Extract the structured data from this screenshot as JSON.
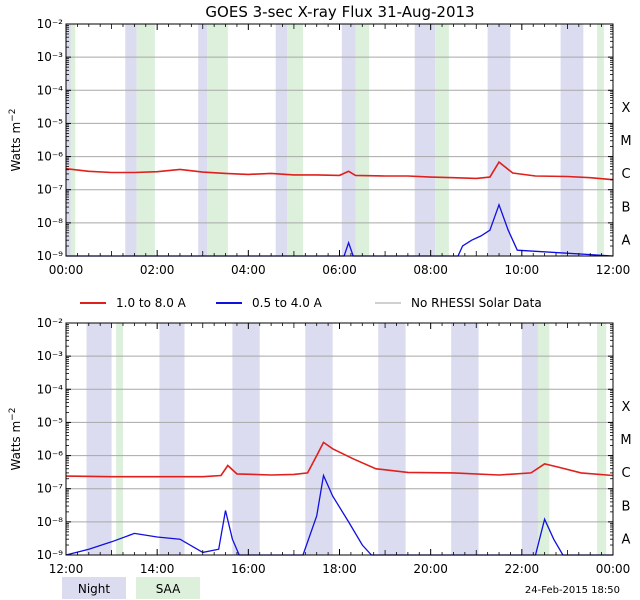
{
  "title": "GOES 3-sec X-ray Flux   31-Aug-2013",
  "footer_timestamp": "24-Feb-2015 18:50",
  "colors": {
    "night": "#dcdcf0",
    "saa": "#dcf0dc",
    "long_channel": "#e0201c",
    "short_channel": "#1010e0",
    "no_rhessi": "#a0a0a0",
    "grid": "#a8a8a8",
    "axes": "#000000"
  },
  "legend": [
    {
      "label": "1.0 to 8.0 A",
      "color": "#e0201c"
    },
    {
      "label": "0.5 to 4.0 A",
      "color": "#1010e0"
    },
    {
      "label": "No RHESSI Solar Data",
      "color": "#a0a0a0"
    }
  ],
  "footer_legend": [
    {
      "label": "Night",
      "color": "#dcdcf0"
    },
    {
      "label": "SAA",
      "color": "#dcf0dc"
    }
  ],
  "chart_data": [
    {
      "type": "line",
      "panel": "top",
      "ylabel": "Watts m^-2",
      "yscale": "log",
      "ylim": [
        1e-09,
        0.01
      ],
      "y_ticks": [
        "10⁻⁹",
        "10⁻⁸",
        "10⁻⁷",
        "10⁻⁶",
        "10⁻⁵",
        "10⁻⁴",
        "10⁻³",
        "10⁻²"
      ],
      "flare_classes": [
        "A",
        "B",
        "C",
        "M",
        "X"
      ],
      "xlim_hours": [
        0,
        12
      ],
      "x_ticks": [
        "00:00",
        "02:00",
        "04:00",
        "06:00",
        "08:00",
        "10:00",
        "12:00"
      ],
      "grid": true,
      "night_hours": [
        [
          0.0,
          0.2
        ],
        [
          1.3,
          1.55
        ],
        [
          2.9,
          3.1
        ],
        [
          4.6,
          4.85
        ],
        [
          6.05,
          6.35
        ],
        [
          7.65,
          8.1
        ],
        [
          9.25,
          9.75
        ],
        [
          10.85,
          11.35
        ]
      ],
      "saa_hours": [
        [
          0.1,
          0.2
        ],
        [
          1.55,
          1.95
        ],
        [
          3.1,
          3.55
        ],
        [
          4.85,
          5.2
        ],
        [
          6.35,
          6.65
        ],
        [
          8.1,
          8.4
        ],
        [
          11.65,
          11.8
        ]
      ],
      "series": [
        {
          "name": "1.0 to 8.0 A",
          "points": [
            [
              0.0,
              4.3e-07
            ],
            [
              0.5,
              3.6e-07
            ],
            [
              1.0,
              3.3e-07
            ],
            [
              1.5,
              3.3e-07
            ],
            [
              2.0,
              3.5e-07
            ],
            [
              2.5,
              4.1e-07
            ],
            [
              3.0,
              3.4e-07
            ],
            [
              3.5,
              3.1e-07
            ],
            [
              4.0,
              2.9e-07
            ],
            [
              4.5,
              3.1e-07
            ],
            [
              5.0,
              2.8e-07
            ],
            [
              5.5,
              2.8e-07
            ],
            [
              6.0,
              2.7e-07
            ],
            [
              6.2,
              3.6e-07
            ],
            [
              6.35,
              2.7e-07
            ],
            [
              7.0,
              2.6e-07
            ],
            [
              7.5,
              2.6e-07
            ],
            [
              8.0,
              2.4e-07
            ],
            [
              8.5,
              2.3e-07
            ],
            [
              9.0,
              2.2e-07
            ],
            [
              9.3,
              2.4e-07
            ],
            [
              9.5,
              6.8e-07
            ],
            [
              9.8,
              3.2e-07
            ],
            [
              10.3,
              2.6e-07
            ],
            [
              11.0,
              2.5e-07
            ],
            [
              11.5,
              2.3e-07
            ],
            [
              12.0,
              2e-07
            ]
          ]
        },
        {
          "name": "0.5 to 4.0 A",
          "points": [
            [
              0.0,
              1e-09
            ],
            [
              6.1,
              1e-09
            ],
            [
              6.2,
              2.5e-09
            ],
            [
              6.3,
              1e-09
            ],
            [
              8.6,
              1e-09
            ],
            [
              8.7,
              2e-09
            ],
            [
              8.9,
              3e-09
            ],
            [
              9.1,
              4e-09
            ],
            [
              9.3,
              6e-09
            ],
            [
              9.5,
              3.5e-08
            ],
            [
              9.7,
              6e-09
            ],
            [
              9.9,
              1.5e-09
            ],
            [
              12.0,
              1e-09
            ]
          ]
        }
      ]
    },
    {
      "type": "line",
      "panel": "bottom",
      "ylabel": "Watts m^-2",
      "yscale": "log",
      "ylim": [
        1e-09,
        0.01
      ],
      "y_ticks": [
        "10⁻⁹",
        "10⁻⁸",
        "10⁻⁷",
        "10⁻⁶",
        "10⁻⁵",
        "10⁻⁴",
        "10⁻³",
        "10⁻²"
      ],
      "flare_classes": [
        "A",
        "B",
        "C",
        "M",
        "X"
      ],
      "xlim_hours": [
        12,
        24
      ],
      "x_ticks": [
        "12:00",
        "14:00",
        "16:00",
        "18:00",
        "20:00",
        "22:00",
        "00:00"
      ],
      "grid": true,
      "night_hours": [
        [
          12.45,
          13.0
        ],
        [
          14.05,
          14.6
        ],
        [
          15.65,
          16.25
        ],
        [
          17.25,
          17.85
        ],
        [
          18.85,
          19.45
        ],
        [
          20.45,
          21.05
        ],
        [
          22.0,
          22.6
        ]
      ],
      "saa_hours": [
        [
          13.1,
          13.25
        ],
        [
          22.35,
          22.6
        ],
        [
          23.65,
          23.85
        ]
      ],
      "series": [
        {
          "name": "1.0 to 8.0 A",
          "points": [
            [
              12.0,
              2.4e-07
            ],
            [
              13.0,
              2.3e-07
            ],
            [
              14.0,
              2.3e-07
            ],
            [
              15.0,
              2.3e-07
            ],
            [
              15.4,
              2.5e-07
            ],
            [
              15.55,
              5e-07
            ],
            [
              15.75,
              2.8e-07
            ],
            [
              16.5,
              2.6e-07
            ],
            [
              17.0,
              2.7e-07
            ],
            [
              17.3,
              3e-07
            ],
            [
              17.5,
              1e-06
            ],
            [
              17.65,
              2.5e-06
            ],
            [
              17.85,
              1.6e-06
            ],
            [
              18.3,
              8e-07
            ],
            [
              18.8,
              4e-07
            ],
            [
              19.5,
              3.1e-07
            ],
            [
              20.5,
              3e-07
            ],
            [
              21.5,
              2.6e-07
            ],
            [
              22.2,
              3e-07
            ],
            [
              22.5,
              5.6e-07
            ],
            [
              22.8,
              4.5e-07
            ],
            [
              23.3,
              3e-07
            ],
            [
              24.0,
              2.5e-07
            ]
          ]
        },
        {
          "name": "0.5 to 4.0 A",
          "points": [
            [
              12.0,
              1e-09
            ],
            [
              12.5,
              1.5e-09
            ],
            [
              13.0,
              2.5e-09
            ],
            [
              13.5,
              4.5e-09
            ],
            [
              14.0,
              3.5e-09
            ],
            [
              14.5,
              3e-09
            ],
            [
              15.0,
              1.2e-09
            ],
            [
              15.35,
              1.5e-09
            ],
            [
              15.5,
              2.2e-08
            ],
            [
              15.65,
              3e-09
            ],
            [
              15.8,
              1e-09
            ],
            [
              17.2,
              1e-09
            ],
            [
              17.5,
              1.5e-08
            ],
            [
              17.65,
              2.5e-07
            ],
            [
              17.85,
              6e-08
            ],
            [
              18.2,
              1e-08
            ],
            [
              18.5,
              2e-09
            ],
            [
              18.7,
              1e-09
            ],
            [
              22.3,
              1e-09
            ],
            [
              22.5,
              1.2e-08
            ],
            [
              22.7,
              3e-09
            ],
            [
              22.9,
              1e-09
            ],
            [
              24.0,
              1e-09
            ]
          ]
        }
      ]
    }
  ]
}
